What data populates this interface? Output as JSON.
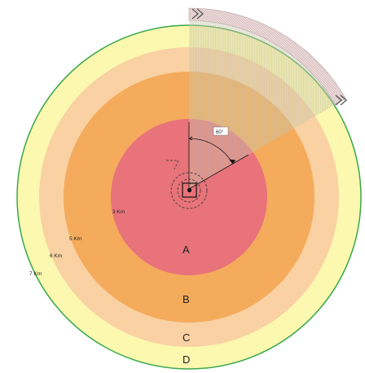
{
  "zones": [
    {
      "id": "A",
      "label": "A",
      "color": "#e8737a"
    },
    {
      "id": "B",
      "label": "B",
      "color": "#f5ab5c"
    },
    {
      "id": "C",
      "label": "C",
      "color": "#f9d1a2"
    },
    {
      "id": "D",
      "label": "D",
      "color": "#fcf8b0"
    }
  ],
  "boundary_color": "#3aa84a",
  "range_labels": [
    "3 Km",
    "5 Km",
    "6 Km",
    "7 Km"
  ],
  "sector": {
    "angle_label": "60°",
    "color": "#c6c8a4",
    "arc_color": "#e0c2c2"
  }
}
